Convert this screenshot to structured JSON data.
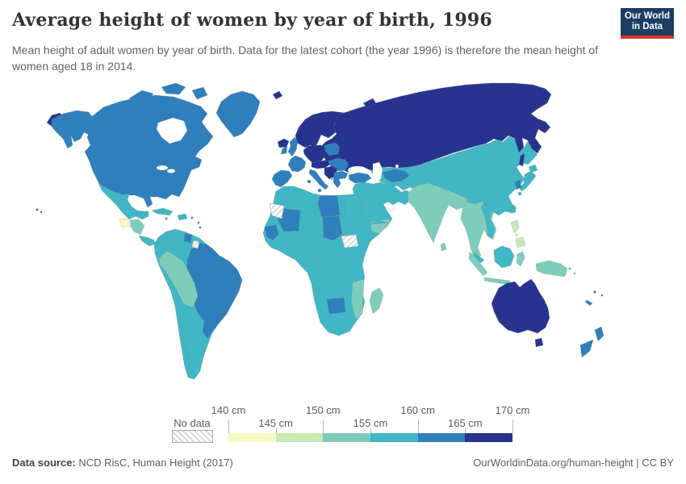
{
  "header": {
    "title": "Average height of women by year of birth, 1996",
    "subtitle": "Mean height of adult women by year of birth. Data for the latest cohort (the year 1996) is therefore the mean height of women aged 18 in 2014.",
    "logo": {
      "line1": "Our World",
      "line2": "in Data",
      "bg_color": "#1d3d63",
      "accent_color": "#d7342a"
    }
  },
  "legend": {
    "no_data_label": "No data",
    "top_labels": [
      "140 cm",
      "150 cm",
      "160 cm",
      "170 cm"
    ],
    "bottom_labels": [
      "145 cm",
      "155 cm",
      "165 cm"
    ]
  },
  "footer": {
    "source_label": "Data source:",
    "source_text": " NCD RisC, Human Height (2017)",
    "link_text": "OurWorldinData.org/human-height | CC BY"
  },
  "chart_data": {
    "type": "heatmap",
    "subtype": "choropleth_world_map",
    "title": "Average height of women by year of birth, 1996",
    "metric": "Mean height of adult women",
    "unit": "cm",
    "value_range": [
      140,
      170
    ],
    "legend_position": "bottom",
    "bins": [
      {
        "label": "140-145 cm",
        "min": 140,
        "max": 145,
        "color": "#f8f9c4"
      },
      {
        "label": "145-150 cm",
        "min": 145,
        "max": 150,
        "color": "#c7e9b4"
      },
      {
        "label": "150-155 cm",
        "min": 150,
        "max": 155,
        "color": "#7ecdba"
      },
      {
        "label": "155-160 cm",
        "min": 155,
        "max": 160,
        "color": "#41b6c4"
      },
      {
        "label": "160-165 cm",
        "min": 160,
        "max": 165,
        "color": "#2f7fbc"
      },
      {
        "label": "165-170 cm",
        "min": 165,
        "max": 170,
        "color": "#27348f"
      },
      {
        "label": "No data",
        "pattern": "diagonal-hatch"
      }
    ],
    "regions": [
      {
        "region": "Russia, Scandinavia, Finland, Baltics, Belarus, Ukraine, Germany, Netherlands, Denmark, Czechia, Austria, Serbia and W. Balkans, Iceland, Svalbard, Australia",
        "bin": "165-170 cm"
      },
      {
        "region": "USA, Canada, Alaska, Greenland, UK, Ireland, France, Spain, Portugal, Italy, Poland, Hungary, Romania, Bulgaria, Greece, Turkey, Turkmenistan, South Korea, Brazil, Uruguay, Guyana, New Zealand, Fiji, Libya, Chad, Mali, Senegal, Botswana",
        "bin": "160-165 cm"
      },
      {
        "region": "Mexico, Cuba, Caribbean, Colombia, Venezuela, Argentina, Chile, Paraguay, most of North and East Africa, South Africa, Arabia, Iran, Iraq, Kazakhstan, Central Asia, China, Mongolia, Japan, Vietnam, Borneo, Taiwan, Panama",
        "bin": "155-160 cm"
      },
      {
        "region": "Ecuador, Peru, Bolivia, Honduras, Nicaragua, India, Pakistan, Bangladesh, Sri Lanka, Myanmar, Thailand, Cambodia, Indonesia, Papua New Guinea, Yemen, Somalia, Mozambique, Zambia, Malawi, Madagascar",
        "bin": "150-155 cm"
      },
      {
        "region": "Philippines",
        "bin": "145-150 cm"
      },
      {
        "region": "Guatemala",
        "bin": "140-145 cm"
      },
      {
        "region": "Mauritania, Western Sahara, South Sudan, French Guiana",
        "bin": "No data"
      }
    ]
  }
}
